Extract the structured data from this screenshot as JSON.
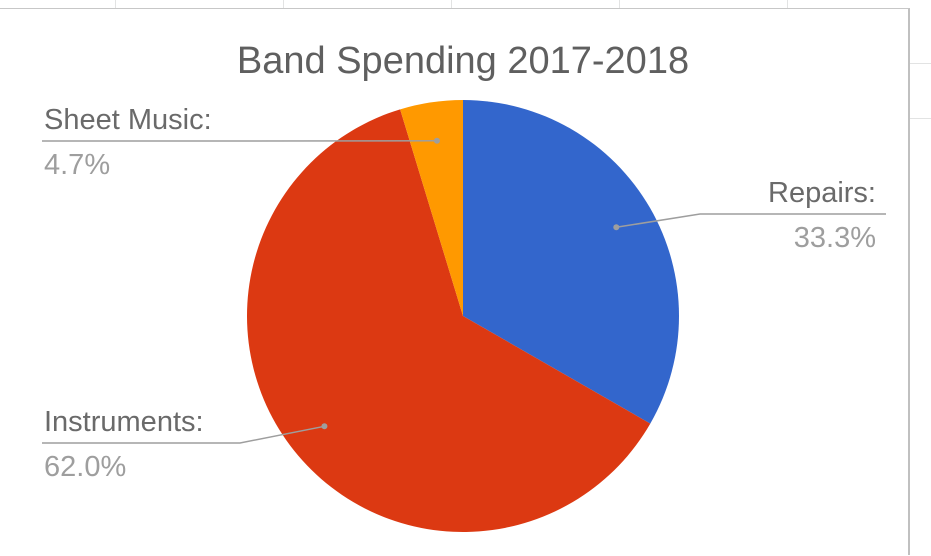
{
  "chart_data": {
    "type": "pie",
    "title": "Band Spending 2017-2018",
    "slices": [
      {
        "label": "Repairs:",
        "value": 33.3,
        "value_label": "33.3%",
        "color": "#3366cc"
      },
      {
        "label": "Instruments:",
        "value": 62.0,
        "value_label": "62.0%",
        "color": "#dc3912"
      },
      {
        "label": "Sheet Music:",
        "value": 4.7,
        "value_label": "4.7%",
        "color": "#ff9900"
      }
    ],
    "start_angle_deg": 0,
    "direction": "clockwise",
    "legend": "labels-with-leader-lines"
  }
}
